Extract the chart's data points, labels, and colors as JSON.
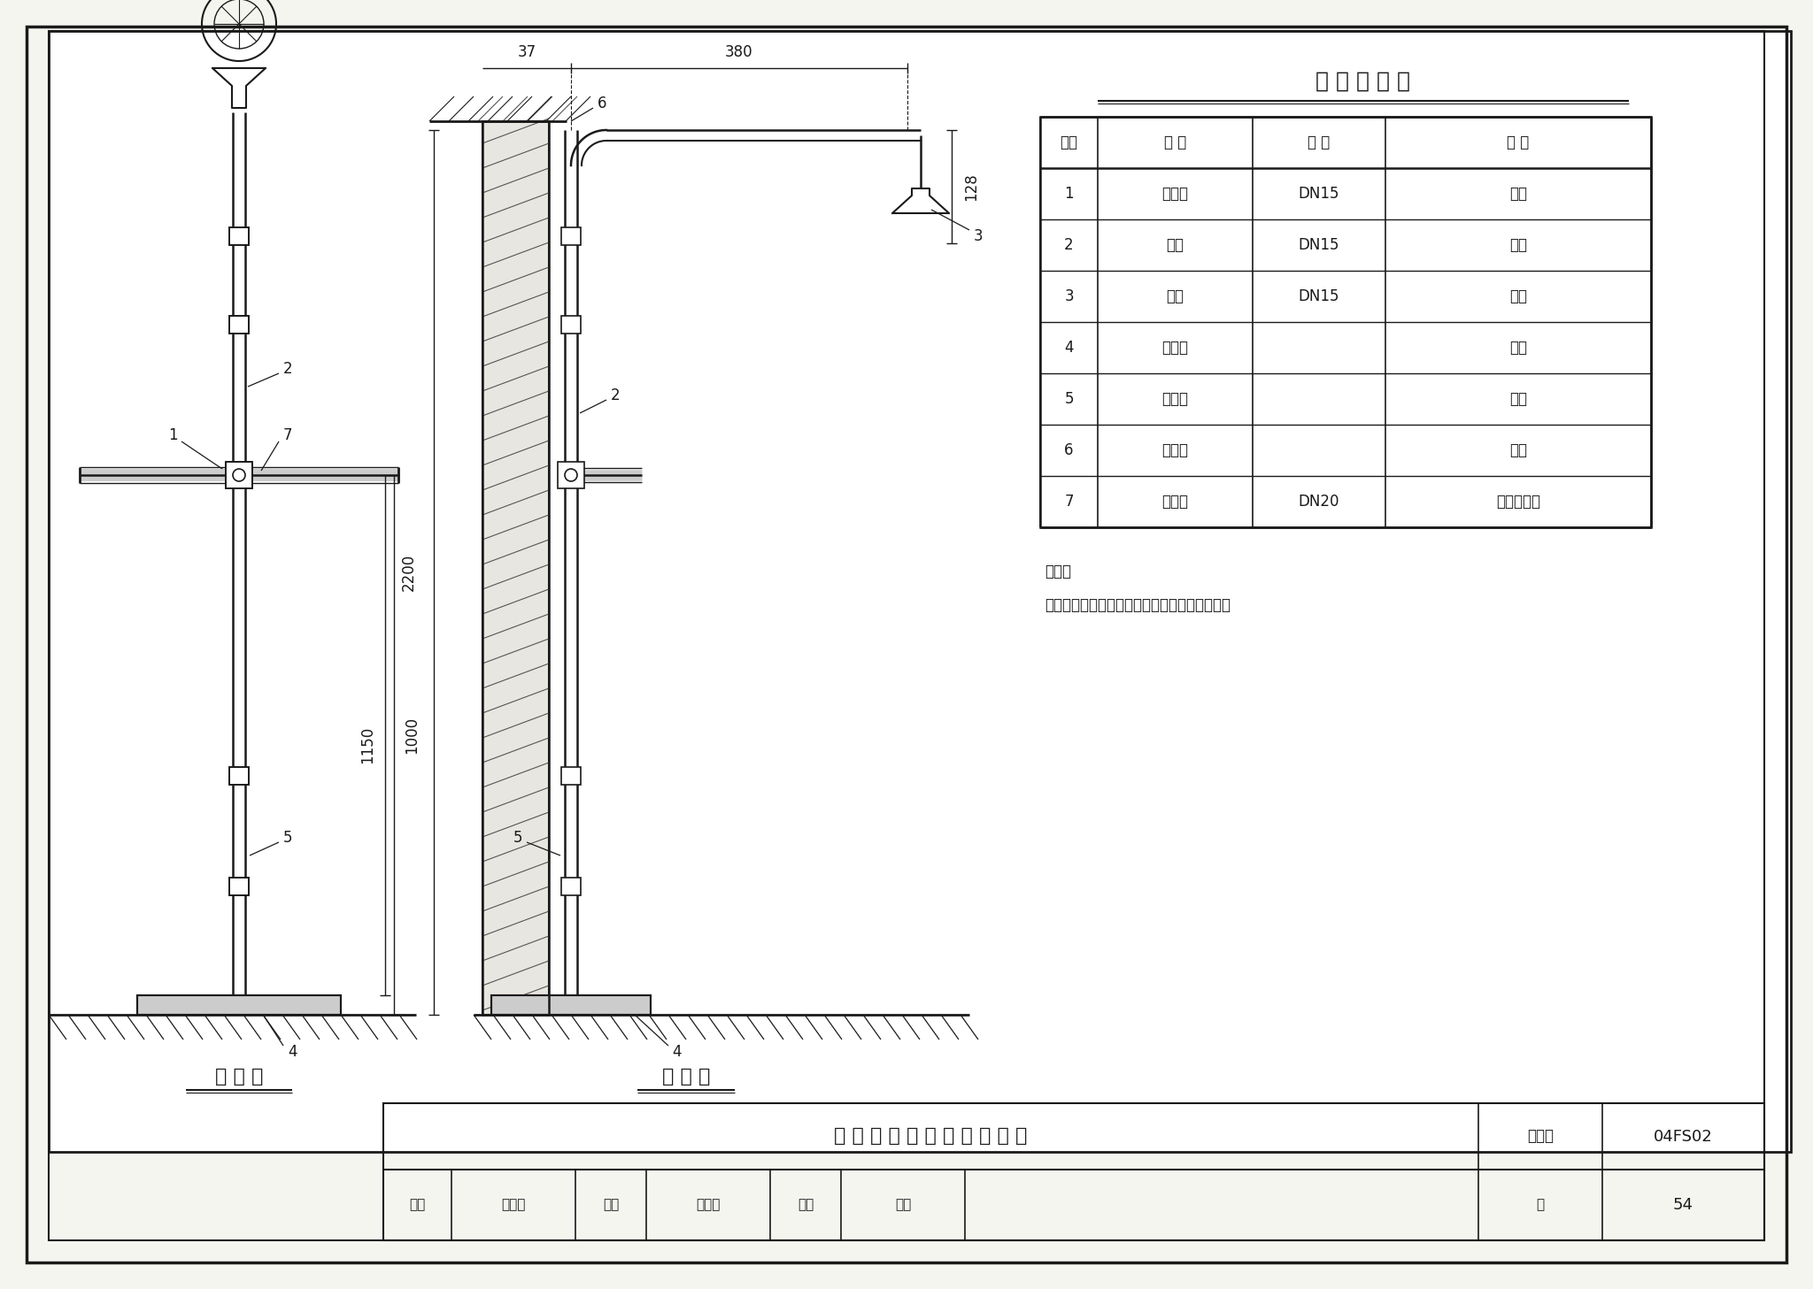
{
  "bg_color": "#ffffff",
  "paper_color": "#f5f5f0",
  "line_color": "#1a1a1a",
  "title_mat": "主 要 材 料 表",
  "table_headers": [
    "编号",
    "名 称",
    "规 格",
    "材 料"
  ],
  "table_rows": [
    [
      "1",
      "开关阀",
      "DN15",
      "配套"
    ],
    [
      "2",
      "立管",
      "DN15",
      "配套"
    ],
    [
      "3",
      "嘴头",
      "DN15",
      "配套"
    ],
    [
      "4",
      "脚塔板",
      "",
      "配套"
    ],
    [
      "5",
      "排水管",
      "",
      "配套"
    ],
    [
      "6",
      "固定座",
      "",
      "配套"
    ],
    [
      "7",
      "热水管",
      "DN20",
      "热镇锌钉管"
    ]
  ],
  "note_title": "说明：",
  "note_text": "室内地面排水沟的做法及地漏位置由设计决定．",
  "left_label": "立 面 图",
  "right_label": "侧 面 图",
  "title_block_title": "单 管 脚 踏 式 淋 浴 器 安 装 图",
  "tb_label1": "图集号",
  "tb_val1": "04FS02",
  "tb_label2": "页",
  "tb_val2": "54",
  "tb_shenhe": "审核",
  "tb_shenhe_name": "许为民",
  "tb_jiaoduiming": "校对",
  "tb_jiaoduiname": "杨春志",
  "tb_sheji": "设计",
  "tb_shejiname": "任放",
  "dim_380": "380",
  "dim_37": "37",
  "dim_6": "6",
  "dim_128": "128",
  "dim_2200": "2200",
  "dim_1150": "1150",
  "dim_1000": "1000"
}
